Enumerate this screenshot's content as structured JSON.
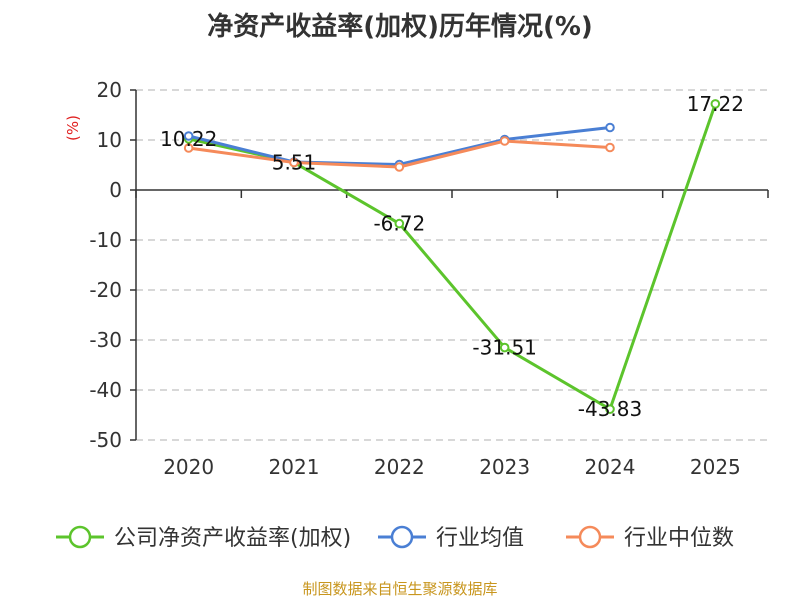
{
  "title": "净资产收益率(加权)历年情况(%)",
  "source": "制图数据来自恒生聚源数据库",
  "chart_data": {
    "type": "line",
    "title": "净资产收益率(加权)历年情况(%)",
    "ylabel": "(%)",
    "xlabel": "",
    "categories": [
      "2020",
      "2021",
      "2022",
      "2023",
      "2024",
      "2025"
    ],
    "ylim": [
      -50,
      20
    ],
    "yticks": [
      20,
      10,
      0,
      -10,
      -20,
      -30,
      -40,
      -50
    ],
    "grid": true,
    "legend_position": "bottom",
    "series": [
      {
        "name": "公司净资产收益率(加权)",
        "color": "#5cc42c",
        "values": [
          10.22,
          5.51,
          -6.72,
          -31.51,
          -43.83,
          17.22
        ],
        "labels": [
          "10.22",
          "5.51",
          "-6.72",
          "-31.51",
          "-43.83",
          "17.22"
        ]
      },
      {
        "name": "行业均值",
        "color": "#4a7fd4",
        "values": [
          10.8,
          5.6,
          5.1,
          10.1,
          12.5,
          null
        ]
      },
      {
        "name": "行业中位数",
        "color": "#f58a5a",
        "values": [
          8.4,
          5.5,
          4.6,
          9.8,
          8.5,
          null
        ]
      }
    ]
  }
}
